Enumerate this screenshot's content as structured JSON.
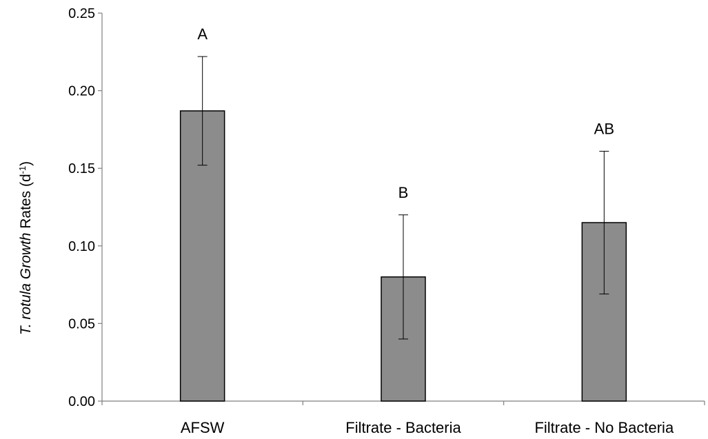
{
  "chart_data": {
    "type": "bar",
    "categories": [
      "AFSW",
      "Filtrate - Bacteria",
      "Filtrate - No Bacteria"
    ],
    "series": [
      {
        "values": [
          0.187,
          0.08,
          0.115
        ],
        "error_lower": [
          0.152,
          0.04,
          0.069
        ],
        "error_upper": [
          0.222,
          0.12,
          0.161
        ],
        "significance_labels": [
          "A",
          "B",
          "AB"
        ]
      }
    ],
    "ylabel": {
      "italic_part": "T. rotula Growth",
      "plain_part": " Rates  (d",
      "superscript": "-1",
      "closing": ")"
    },
    "ylim": [
      0,
      0.25
    ],
    "yticks": [
      0.0,
      0.05,
      0.1,
      0.15,
      0.2,
      0.25
    ],
    "ytick_labels": [
      "0.00",
      "0.05",
      "0.10",
      "0.15",
      "0.20",
      "0.25"
    ],
    "bar_color": "#8c8c8c",
    "bar_edge_color": "#000000",
    "grid": false,
    "legend": "none"
  }
}
